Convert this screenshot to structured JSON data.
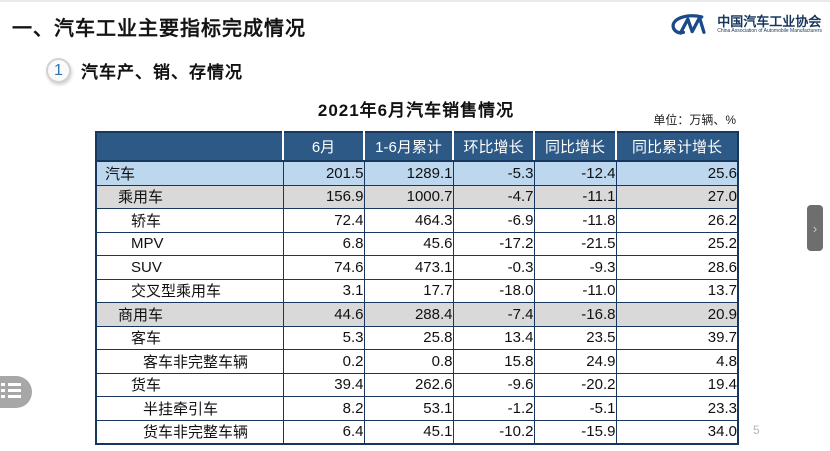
{
  "page": {
    "title": "一、汽车工业主要指标完成情况",
    "section_number": "1",
    "section_title": "汽车产、销、存情况",
    "page_number": "5"
  },
  "logo": {
    "org_name_cn": "中国汽车工业协会",
    "org_name_en": "China Association of Automobile Manufacturers"
  },
  "table": {
    "title": "2021年6月汽车销售情况",
    "unit_note": "单位：万辆、%",
    "columns": [
      "",
      "6月",
      "1-6月累计",
      "环比增长",
      "同比增长",
      "同比累计增长"
    ],
    "rows": [
      {
        "label": "汽车",
        "indent": 0,
        "bg": "blue",
        "values": [
          "201.5",
          "1289.1",
          "-5.3",
          "-12.4",
          "25.6"
        ]
      },
      {
        "label": "乘用车",
        "indent": 1,
        "bg": "gray",
        "values": [
          "156.9",
          "1000.7",
          "-4.7",
          "-11.1",
          "27.0"
        ]
      },
      {
        "label": "轿车",
        "indent": 2,
        "bg": "white",
        "values": [
          "72.4",
          "464.3",
          "-6.9",
          "-11.8",
          "26.2"
        ]
      },
      {
        "label": "MPV",
        "indent": 2,
        "bg": "white",
        "values": [
          "6.8",
          "45.6",
          "-17.2",
          "-21.5",
          "25.2"
        ]
      },
      {
        "label": "SUV",
        "indent": 2,
        "bg": "white",
        "values": [
          "74.6",
          "473.1",
          "-0.3",
          "-9.3",
          "28.6"
        ]
      },
      {
        "label": "交叉型乘用车",
        "indent": 2,
        "bg": "white",
        "values": [
          "3.1",
          "17.7",
          "-18.0",
          "-11.0",
          "13.7"
        ]
      },
      {
        "label": "商用车",
        "indent": 1,
        "bg": "gray",
        "values": [
          "44.6",
          "288.4",
          "-7.4",
          "-16.8",
          "20.9"
        ]
      },
      {
        "label": "客车",
        "indent": 2,
        "bg": "white",
        "values": [
          "5.3",
          "25.8",
          "13.4",
          "23.5",
          "39.7"
        ]
      },
      {
        "label": "客车非完整车辆",
        "indent": 3,
        "bg": "white",
        "values": [
          "0.2",
          "0.8",
          "15.8",
          "24.9",
          "4.8"
        ]
      },
      {
        "label": "货车",
        "indent": 2,
        "bg": "white",
        "values": [
          "39.4",
          "262.6",
          "-9.6",
          "-20.2",
          "19.4"
        ]
      },
      {
        "label": "半挂牵引车",
        "indent": 3,
        "bg": "white",
        "values": [
          "8.2",
          "53.1",
          "-1.2",
          "-5.1",
          "23.3"
        ]
      },
      {
        "label": "货车非完整车辆",
        "indent": 3,
        "bg": "white",
        "values": [
          "6.4",
          "45.1",
          "-10.2",
          "-15.9",
          "34.0"
        ]
      }
    ]
  },
  "ui": {
    "drawer_chevron": "›"
  },
  "colors": {
    "header_bg": "#2d5986",
    "row_blue": "#bdd7ee",
    "row_gray": "#d9d9d9",
    "border": "#17375e",
    "logo_blue": "#17365d",
    "badge_blue": "#2e75b6"
  }
}
